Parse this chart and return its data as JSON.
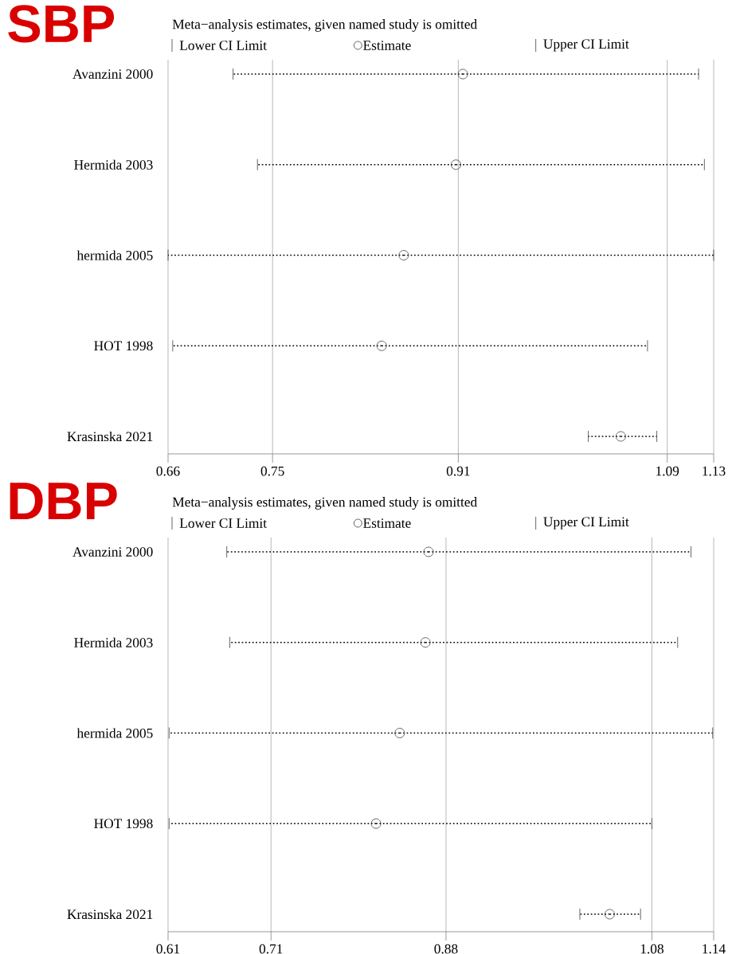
{
  "chart_data": [
    {
      "type": "scatter",
      "orientation": "horizontal",
      "title": "SBP",
      "subtitle": "Meta−analysis estimates, given named study is omitted",
      "categories": [
        "Avanzini 2000",
        "Hermida 2003",
        "hermida 2005",
        "HOT 1998",
        "Krasinska 2021"
      ],
      "series": [
        {
          "name": "Estimate",
          "color": "#404040",
          "marker": "circle",
          "values": [
            0.914,
            0.908,
            0.863,
            0.844,
            1.05
          ],
          "errors": [
            [
              0.716,
              1.117
            ],
            [
              0.737,
              1.122
            ],
            [
              0.66,
              1.13
            ],
            [
              0.664,
              1.073
            ],
            [
              1.022,
              1.081
            ]
          ]
        }
      ],
      "annotations": [
        "Lower CI Limit",
        "Upper CI Limit"
      ],
      "line_style": "dotted",
      "legend": "top",
      "grid": "x",
      "xlim": [
        0.66,
        1.13
      ],
      "xticks": [
        0.66,
        0.75,
        0.91,
        1.09,
        1.13
      ]
    },
    {
      "type": "scatter",
      "orientation": "horizontal",
      "title": "DBP",
      "subtitle": "Meta−analysis estimates, given named study is omitted",
      "categories": [
        "Avanzini 2000",
        "Hermida 2003",
        "hermida 2005",
        "HOT 1998",
        "Krasinska 2021"
      ],
      "series": [
        {
          "name": "Estimate",
          "color": "#404040",
          "marker": "circle",
          "values": [
            0.863,
            0.86,
            0.835,
            0.812,
            1.039
          ],
          "errors": [
            [
              0.667,
              1.118
            ],
            [
              0.67,
              1.105
            ],
            [
              0.611,
              1.139
            ],
            [
              0.611,
              1.08
            ],
            [
              1.01,
              1.069
            ]
          ]
        }
      ],
      "annotations": [
        "Lower CI Limit",
        "Upper CI Limit"
      ],
      "line_style": "dotted",
      "legend": "top",
      "grid": "x",
      "xlim": [
        0.61,
        1.14
      ],
      "xticks": [
        0.61,
        0.71,
        0.88,
        1.08,
        1.14
      ]
    }
  ]
}
